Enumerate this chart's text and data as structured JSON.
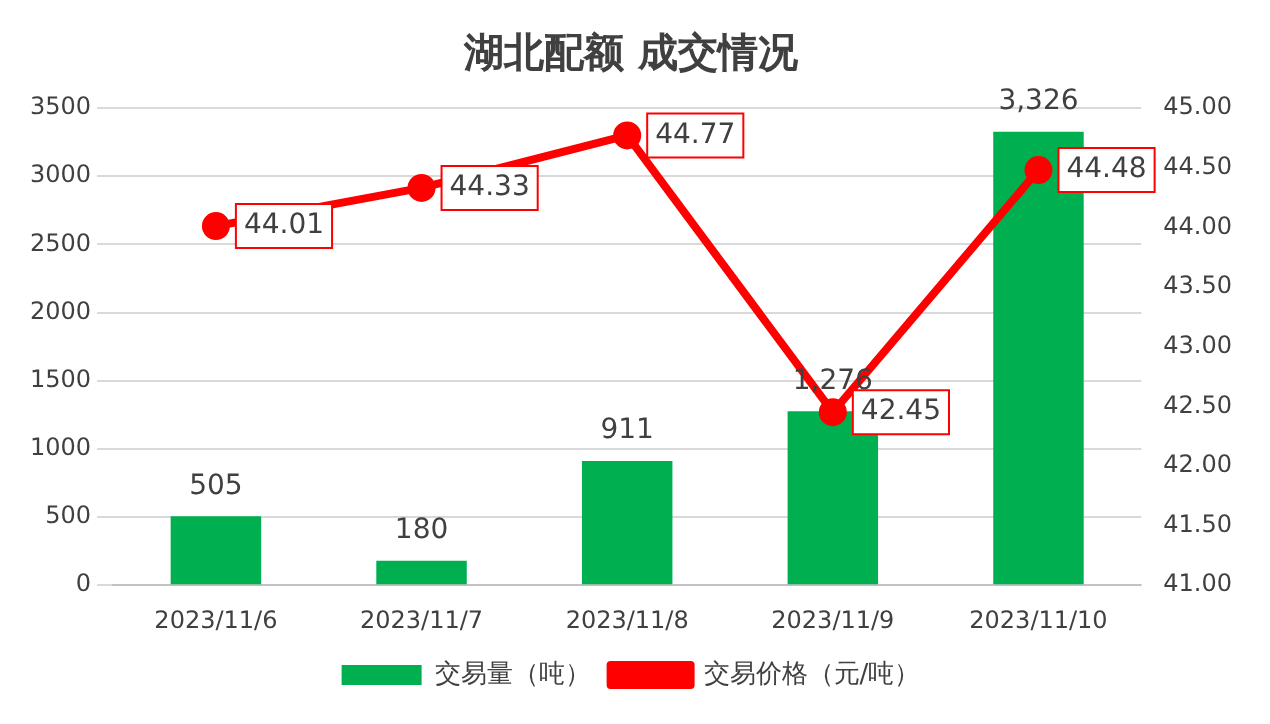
{
  "chart_data": {
    "type": "bar",
    "title": "湖北配额 成交情况",
    "categories": [
      "2023/11/6",
      "2023/11/7",
      "2023/11/8",
      "2023/11/9",
      "2023/11/10"
    ],
    "series": [
      {
        "name": "交易量（吨）",
        "color": "#00b050",
        "values": [
          505,
          180,
          911,
          1276,
          3326
        ],
        "value_labels": [
          "505",
          "180",
          "911",
          "1,276",
          "3,326"
        ]
      },
      {
        "name": "交易价格（元/吨）",
        "type": "line",
        "axis": "y2",
        "color": "#ff0000",
        "marker": "circle",
        "values": [
          44.01,
          44.33,
          44.77,
          42.45,
          44.48
        ],
        "value_labels": [
          "44.01",
          "44.33",
          "44.77",
          "42.45",
          "44.48"
        ]
      }
    ],
    "ylim": [
      0,
      3500
    ],
    "yticks": [
      0,
      500,
      1000,
      1500,
      2000,
      2500,
      3000,
      3500
    ],
    "y2lim": [
      41,
      45
    ],
    "y2ticks": [
      {
        "value": 41,
        "label": "41.00"
      },
      {
        "value": 41.5,
        "label": "41.50"
      },
      {
        "value": 42,
        "label": "42.00"
      },
      {
        "value": 42.5,
        "label": "42.50"
      },
      {
        "value": 43,
        "label": "43.00"
      },
      {
        "value": 43.5,
        "label": "43.50"
      },
      {
        "value": 44,
        "label": "44.00"
      },
      {
        "value": 44.5,
        "label": "44.50"
      },
      {
        "value": 45,
        "label": "45.00"
      }
    ],
    "grid": "y",
    "legend": "bottom"
  }
}
